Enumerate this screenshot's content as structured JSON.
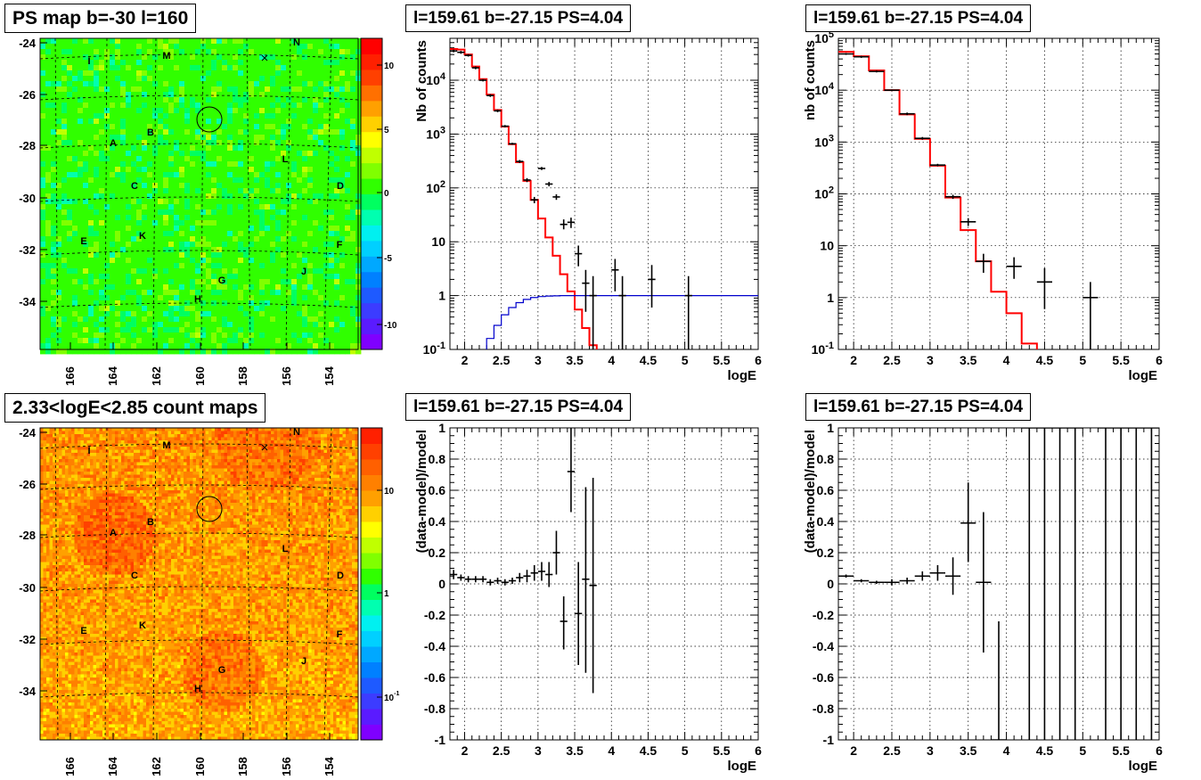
{
  "panels": [
    {
      "id": "p1",
      "title": "PS map b=-30 l=160"
    },
    {
      "id": "p2",
      "title": "l=159.61 b=-27.15 PS=4.04"
    },
    {
      "id": "p3",
      "title": "l=159.61 b=-27.15 PS=4.04"
    },
    {
      "id": "p4",
      "title": "2.33<logE<2.85 count maps"
    },
    {
      "id": "p5",
      "title": "l=159.61 b=-27.15 PS=4.04"
    },
    {
      "id": "p6",
      "title": "l=159.61 b=-27.15 PS=4.04"
    }
  ],
  "maps": {
    "x_ticks": [
      "166",
      "164",
      "162",
      "160",
      "158",
      "156",
      "154"
    ],
    "y_ticks": [
      "-24",
      "-26",
      "-28",
      "-30",
      "-32",
      "-34"
    ],
    "source_labels": [
      "I",
      "M",
      "N",
      "A",
      "B",
      "L",
      "C",
      "D",
      "E",
      "K",
      "F",
      "J",
      "G",
      "H"
    ],
    "ps_colorbar_ticks": [
      "10",
      "5",
      "0",
      "-5",
      "-10"
    ],
    "count_colorbar_ticks": [
      "10",
      "1",
      "10^-1"
    ]
  },
  "chart_data": [
    {
      "type": "line",
      "panel": "p2",
      "title": "l=159.61 b=-27.15 PS=4.04",
      "xlabel": "logE",
      "ylabel": "Nb of counts",
      "xlim": [
        1.8,
        6.0
      ],
      "ylim": [
        0.1,
        60000
      ],
      "yscale": "log",
      "x_ticks": [
        "2",
        "2.5",
        "3",
        "3.5",
        "4",
        "4.5",
        "5",
        "5.5",
        "6"
      ],
      "y_ticks": [
        "10^-1",
        "1",
        "10",
        "10^2",
        "10^3",
        "10^4"
      ],
      "grid": true,
      "series": [
        {
          "color": "#ff0000",
          "bin_width": 0.1,
          "x": [
            1.8,
            1.9,
            2.0,
            2.1,
            2.2,
            2.3,
            2.4,
            2.5,
            2.6,
            2.7,
            2.8,
            2.9,
            3.0,
            3.1,
            3.2,
            3.3,
            3.4,
            3.5,
            3.6,
            3.7,
            3.8,
            3.9,
            4.0,
            4.1,
            4.2,
            4.3,
            4.4,
            4.5,
            4.6,
            4.7,
            4.8,
            4.9,
            5.0,
            5.1,
            5.2,
            5.3,
            5.4,
            5.5,
            5.6,
            5.7,
            5.8,
            5.9
          ],
          "values": [
            38000,
            37000,
            30000,
            18000,
            10500,
            5400,
            2800,
            1380,
            650,
            300,
            135,
            60,
            27,
            12,
            5.5,
            2.5,
            1.2,
            0.55,
            0.25,
            0.12,
            0.05,
            0.02,
            0.01,
            0.01,
            0.01,
            0.01,
            0.01,
            0.01,
            0.01,
            0.01,
            0.01,
            0.01,
            0.01,
            0.01,
            0.01,
            0.01,
            0.01,
            0.01,
            0.01,
            0.01,
            0.01,
            0.01
          ]
        },
        {
          "color": "#0000cc",
          "bin_width": 0.1,
          "x": [
            2.2,
            2.3,
            2.4,
            2.5,
            2.6,
            2.7,
            2.8,
            2.9,
            3.0,
            3.1,
            3.2,
            3.3,
            3.4,
            3.5,
            3.6,
            3.7,
            3.8,
            3.9,
            4.0,
            4.1,
            4.2,
            4.3,
            4.4,
            4.5,
            4.6,
            4.7,
            4.8,
            4.9,
            5.0,
            5.1,
            5.2,
            5.3,
            5.4,
            5.5,
            5.6,
            5.7,
            5.8,
            5.9
          ],
          "values": [
            0.08,
            0.16,
            0.28,
            0.44,
            0.6,
            0.74,
            0.85,
            0.92,
            0.96,
            0.98,
            0.99,
            1,
            1,
            1,
            1,
            1,
            1,
            1,
            1,
            1,
            1,
            1,
            1,
            1,
            1,
            1,
            1,
            1,
            1,
            1,
            1,
            1,
            1,
            1,
            1,
            1,
            1,
            1
          ]
        }
      ],
      "points": [
        {
          "x": 1.85,
          "y": 35000,
          "ylo": 33000,
          "yhi": 37000
        },
        {
          "x": 1.95,
          "y": 33000,
          "ylo": 31000,
          "yhi": 35000
        },
        {
          "x": 2.05,
          "y": 29000,
          "ylo": 27500,
          "yhi": 30500
        },
        {
          "x": 2.15,
          "y": 17000,
          "ylo": 16000,
          "yhi": 18000
        },
        {
          "x": 2.25,
          "y": 10000,
          "ylo": 9500,
          "yhi": 10500
        },
        {
          "x": 2.35,
          "y": 5200,
          "ylo": 4900,
          "yhi": 5500
        },
        {
          "x": 2.45,
          "y": 2700,
          "ylo": 2550,
          "yhi": 2850
        },
        {
          "x": 2.55,
          "y": 1400,
          "ylo": 1330,
          "yhi": 1470
        },
        {
          "x": 2.65,
          "y": 660,
          "ylo": 630,
          "yhi": 690
        },
        {
          "x": 2.75,
          "y": 310,
          "ylo": 290,
          "yhi": 330
        },
        {
          "x": 2.85,
          "y": 140,
          "ylo": 128,
          "yhi": 152
        },
        {
          "x": 2.95,
          "y": 60,
          "ylo": 52,
          "yhi": 68
        },
        {
          "x": 3.05,
          "y": 230,
          "ylo": 215,
          "yhi": 245
        },
        {
          "x": 3.15,
          "y": 118,
          "ylo": 107,
          "yhi": 129
        },
        {
          "x": 3.25,
          "y": 68,
          "ylo": 60,
          "yhi": 76
        },
        {
          "x": 3.35,
          "y": 21,
          "ylo": 17,
          "yhi": 26
        },
        {
          "x": 3.45,
          "y": 23,
          "ylo": 18,
          "yhi": 28
        },
        {
          "x": 3.55,
          "y": 6,
          "ylo": 3.5,
          "yhi": 8.5
        },
        {
          "x": 3.65,
          "y": 1.7,
          "ylo": 0.5,
          "yhi": 3.0
        },
        {
          "x": 3.75,
          "y": 1,
          "ylo": 0.1,
          "yhi": 2.3
        },
        {
          "x": 4.05,
          "y": 3,
          "ylo": 1.2,
          "yhi": 4.8
        },
        {
          "x": 4.15,
          "y": 1,
          "ylo": 0.1,
          "yhi": 2.3
        },
        {
          "x": 4.55,
          "y": 2,
          "ylo": 0.6,
          "yhi": 3.7
        },
        {
          "x": 5.05,
          "y": 1,
          "ylo": 0.1,
          "yhi": 2.3
        }
      ]
    },
    {
      "type": "line",
      "panel": "p3",
      "title": "l=159.61 b=-27.15 PS=4.04",
      "xlabel": "logE",
      "ylabel": "nb of counts",
      "xlim": [
        1.8,
        6.0
      ],
      "ylim": [
        0.1,
        100000
      ],
      "yscale": "log",
      "x_ticks": [
        "2",
        "2.5",
        "3",
        "3.5",
        "4",
        "4.5",
        "5",
        "5.5",
        "6"
      ],
      "y_ticks": [
        "10^-1",
        "1",
        "10",
        "10^2",
        "10^3",
        "10^4",
        "10^5"
      ],
      "grid": true,
      "series": [
        {
          "color": "#ff0000",
          "bin_width": 0.2,
          "x": [
            1.8,
            2.0,
            2.2,
            2.4,
            2.6,
            2.8,
            3.0,
            3.2,
            3.4,
            3.6,
            3.8,
            4.0,
            4.2,
            4.4,
            4.6,
            4.8,
            5.0,
            5.2,
            5.4,
            5.6,
            5.8
          ],
          "values": [
            55000,
            45000,
            24000,
            10000,
            3400,
            1150,
            350,
            85,
            20,
            5,
            1.3,
            0.5,
            0.13,
            0.09,
            0.09,
            0.09,
            0.09,
            0.09,
            0.09,
            0.09,
            0.09
          ]
        }
      ],
      "points": [
        {
          "x": 1.9,
          "y": 50000,
          "ylo": 48000,
          "yhi": 52000
        },
        {
          "x": 2.1,
          "y": 44000,
          "ylo": 42000,
          "yhi": 46000
        },
        {
          "x": 2.3,
          "y": 23000,
          "ylo": 22000,
          "yhi": 24000
        },
        {
          "x": 2.5,
          "y": 10000,
          "ylo": 9700,
          "yhi": 10300
        },
        {
          "x": 2.7,
          "y": 3500,
          "ylo": 3300,
          "yhi": 3700
        },
        {
          "x": 2.9,
          "y": 1180,
          "ylo": 1110,
          "yhi": 1250
        },
        {
          "x": 3.1,
          "y": 360,
          "ylo": 340,
          "yhi": 380
        },
        {
          "x": 3.3,
          "y": 88,
          "ylo": 80,
          "yhi": 96
        },
        {
          "x": 3.5,
          "y": 29,
          "ylo": 24,
          "yhi": 34
        },
        {
          "x": 3.7,
          "y": 5,
          "ylo": 3,
          "yhi": 7
        },
        {
          "x": 4.1,
          "y": 4,
          "ylo": 2.3,
          "yhi": 6
        },
        {
          "x": 4.5,
          "y": 2,
          "ylo": 0.6,
          "yhi": 3.7
        },
        {
          "x": 5.1,
          "y": 1,
          "ylo": 0.1,
          "yhi": 2.0
        }
      ]
    },
    {
      "type": "scatter",
      "panel": "p5",
      "title": "l=159.61 b=-27.15 PS=4.04",
      "xlabel": "logE",
      "ylabel": "(data-model)/model",
      "xlim": [
        1.8,
        6.0
      ],
      "ylim": [
        -1,
        1
      ],
      "x_ticks": [
        "2",
        "2.5",
        "3",
        "3.5",
        "4",
        "4.5",
        "5",
        "5.5",
        "6"
      ],
      "y_ticks": [
        "-1",
        "-0.8",
        "-0.6",
        "-0.4",
        "-0.2",
        "0",
        "0.2",
        "0.4",
        "0.6",
        "0.8",
        "1"
      ],
      "grid": true,
      "points": [
        {
          "x": 1.85,
          "y": 0.06,
          "ylo": 0.03,
          "yhi": 0.09
        },
        {
          "x": 1.95,
          "y": 0.04,
          "ylo": 0.02,
          "yhi": 0.06
        },
        {
          "x": 2.05,
          "y": 0.03,
          "ylo": 0.01,
          "yhi": 0.05
        },
        {
          "x": 2.15,
          "y": 0.03,
          "ylo": 0.01,
          "yhi": 0.05
        },
        {
          "x": 2.25,
          "y": 0.03,
          "ylo": 0.01,
          "yhi": 0.05
        },
        {
          "x": 2.35,
          "y": 0.01,
          "ylo": -0.01,
          "yhi": 0.03
        },
        {
          "x": 2.45,
          "y": 0.02,
          "ylo": 0.0,
          "yhi": 0.04
        },
        {
          "x": 2.55,
          "y": 0.01,
          "ylo": -0.01,
          "yhi": 0.03
        },
        {
          "x": 2.65,
          "y": 0.02,
          "ylo": 0.0,
          "yhi": 0.04
        },
        {
          "x": 2.75,
          "y": 0.04,
          "ylo": 0.01,
          "yhi": 0.07
        },
        {
          "x": 2.85,
          "y": 0.05,
          "ylo": 0.01,
          "yhi": 0.09
        },
        {
          "x": 2.95,
          "y": 0.07,
          "ylo": 0.02,
          "yhi": 0.12
        },
        {
          "x": 3.05,
          "y": 0.08,
          "ylo": 0.02,
          "yhi": 0.14
        },
        {
          "x": 3.15,
          "y": 0.06,
          "ylo": -0.02,
          "yhi": 0.14
        },
        {
          "x": 3.25,
          "y": 0.2,
          "ylo": 0.06,
          "yhi": 0.34
        },
        {
          "x": 3.35,
          "y": -0.24,
          "ylo": -0.42,
          "yhi": -0.08
        },
        {
          "x": 3.45,
          "y": 0.72,
          "ylo": 0.46,
          "yhi": 1.0
        },
        {
          "x": 3.55,
          "y": -0.19,
          "ylo": -0.52,
          "yhi": 0.14
        },
        {
          "x": 3.65,
          "y": 0.03,
          "ylo": -0.57,
          "yhi": 0.62
        },
        {
          "x": 3.75,
          "y": -0.01,
          "ylo": -0.7,
          "yhi": 0.68
        }
      ]
    },
    {
      "type": "scatter",
      "panel": "p6",
      "title": "l=159.61 b=-27.15 PS=4.04",
      "xlabel": "logE",
      "ylabel": "(data-model)/model",
      "xlim": [
        1.8,
        6.0
      ],
      "ylim": [
        -1,
        1
      ],
      "x_ticks": [
        "2",
        "2.5",
        "3",
        "3.5",
        "4",
        "4.5",
        "5",
        "5.5",
        "6"
      ],
      "y_ticks": [
        "-1",
        "-0.8",
        "-0.6",
        "-0.4",
        "-0.2",
        "0",
        "0.2",
        "0.4",
        "0.6",
        "0.8",
        "1"
      ],
      "grid": true,
      "points": [
        {
          "x": 1.9,
          "y": 0.05,
          "ylo": 0.04,
          "yhi": 0.06
        },
        {
          "x": 2.1,
          "y": 0.02,
          "ylo": 0.01,
          "yhi": 0.03
        },
        {
          "x": 2.3,
          "y": 0.01,
          "ylo": 0.0,
          "yhi": 0.02
        },
        {
          "x": 2.5,
          "y": 0.01,
          "ylo": -0.01,
          "yhi": 0.03
        },
        {
          "x": 2.7,
          "y": 0.02,
          "ylo": 0.0,
          "yhi": 0.04
        },
        {
          "x": 2.9,
          "y": 0.05,
          "ylo": 0.02,
          "yhi": 0.08
        },
        {
          "x": 3.1,
          "y": 0.07,
          "ylo": 0.02,
          "yhi": 0.12
        },
        {
          "x": 3.3,
          "y": 0.05,
          "ylo": -0.07,
          "yhi": 0.17
        },
        {
          "x": 3.5,
          "y": 0.39,
          "ylo": 0.14,
          "yhi": 0.65
        },
        {
          "x": 3.7,
          "y": 0.01,
          "ylo": -0.44,
          "yhi": 0.46
        },
        {
          "x": 3.9,
          "y": -1.0,
          "ylo": -1.0,
          "yhi": -0.24
        },
        {
          "x": 4.3,
          "y": 1.0,
          "ylo": -1.0,
          "yhi": 1.0
        },
        {
          "x": 4.5,
          "y": 1.0,
          "ylo": -1.0,
          "yhi": 1.0
        },
        {
          "x": 4.7,
          "y": 1.0,
          "ylo": -1.0,
          "yhi": 1.0
        },
        {
          "x": 4.9,
          "y": 1.0,
          "ylo": -1.0,
          "yhi": 1.0
        },
        {
          "x": 5.3,
          "y": 1.0,
          "ylo": -1.0,
          "yhi": 1.0
        },
        {
          "x": 5.5,
          "y": 1.0,
          "ylo": -1.0,
          "yhi": 1.0
        },
        {
          "x": 5.7,
          "y": 1.0,
          "ylo": -1.0,
          "yhi": 1.0
        },
        {
          "x": 5.9,
          "y": 1.0,
          "ylo": -1.0,
          "yhi": 1.0
        }
      ]
    }
  ]
}
